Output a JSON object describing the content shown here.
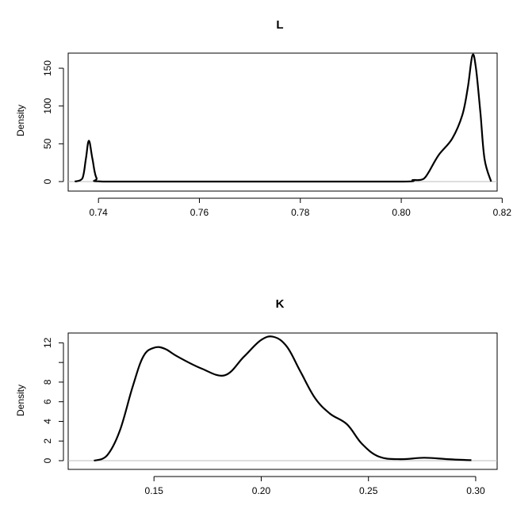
{
  "chart_data": [
    {
      "type": "line",
      "title": "L",
      "xlabel": "",
      "ylabel": "Density",
      "xlim": [
        0.734,
        0.819
      ],
      "ylim": [
        0,
        170
      ],
      "xticks": [
        0.74,
        0.76,
        0.78,
        0.8,
        0.82
      ],
      "xtick_labels": [
        "0.74",
        "0.76",
        "0.78",
        "0.80",
        "0.82"
      ],
      "yticks": [
        0,
        50,
        100,
        150
      ],
      "ytick_labels": [
        "0",
        "50",
        "100",
        "150"
      ],
      "grid": false,
      "baseline": 0,
      "x": [
        0.7353,
        0.7368,
        0.7375,
        0.7381,
        0.7388,
        0.7396,
        0.7411,
        0.76,
        0.78,
        0.8001,
        0.8023,
        0.8034,
        0.8045,
        0.8054,
        0.8074,
        0.8101,
        0.8121,
        0.8132,
        0.8141,
        0.8148,
        0.8157,
        0.8165,
        0.8178
      ],
      "series": [
        {
          "values": [
            0,
            4,
            30,
            54,
            30,
            5,
            0,
            0,
            0,
            0,
            2,
            2,
            4,
            12,
            35,
            57,
            88,
            125,
            167,
            150,
            90,
            30,
            0
          ]
        }
      ]
    },
    {
      "type": "line",
      "title": "K",
      "xlabel": "",
      "ylabel": "Density",
      "xlim": [
        0.11,
        0.31
      ],
      "ylim": [
        0,
        13
      ],
      "xticks": [
        0.15,
        0.2,
        0.25,
        0.3
      ],
      "xtick_labels": [
        "0.15",
        "0.20",
        "0.25",
        "0.30"
      ],
      "yticks": [
        0,
        2,
        4,
        6,
        8,
        10,
        12
      ],
      "ytick_labels": [
        "0",
        "2",
        "4",
        "6",
        "8",
        "",
        "12"
      ],
      "grid": false,
      "baseline": 0,
      "x": [
        0.122,
        0.128,
        0.134,
        0.14,
        0.145,
        0.15,
        0.155,
        0.161,
        0.172,
        0.183,
        0.192,
        0.2,
        0.206,
        0.212,
        0.218,
        0.225,
        0.232,
        0.24,
        0.247,
        0.255,
        0.265,
        0.276,
        0.287,
        0.298
      ],
      "series": [
        {
          "values": [
            0,
            0.5,
            3,
            7.5,
            10.6,
            11.5,
            11.4,
            10.6,
            9.4,
            8.7,
            10.6,
            12.3,
            12.6,
            11.6,
            9.2,
            6.4,
            4.8,
            3.7,
            1.7,
            0.4,
            0.15,
            0.3,
            0.15,
            0.05
          ]
        }
      ]
    }
  ]
}
